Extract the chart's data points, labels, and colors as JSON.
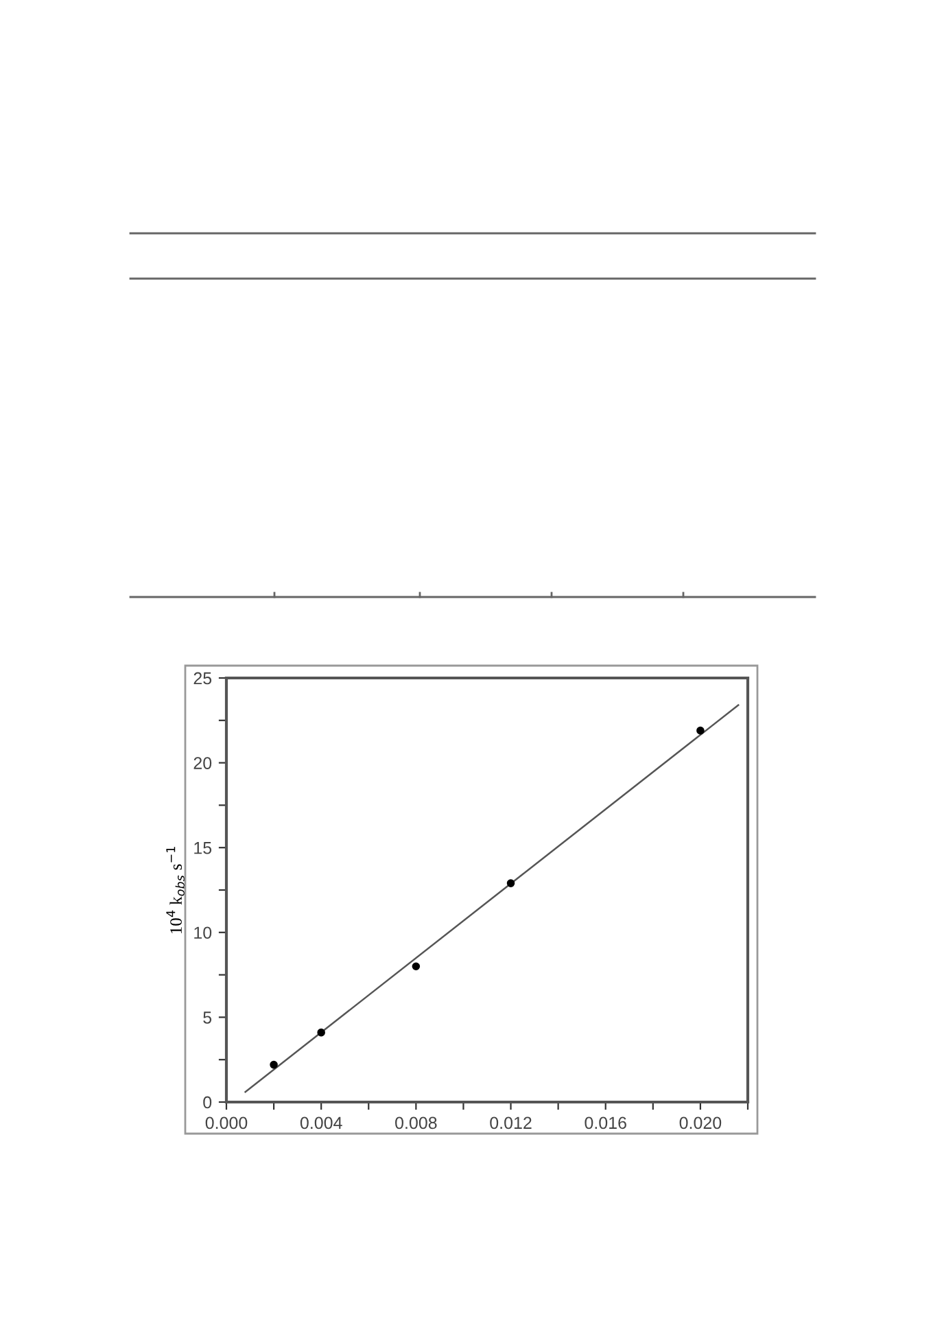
{
  "chart_data": {
    "type": "scatter",
    "ylabel": "10$^{4}$ k$_{obs}$ s$^{−1}$",
    "series": [
      {
        "color": "#000000",
        "x": [
          0.002,
          0.004,
          0.008,
          0.012,
          0.02
        ],
        "values": [
          2.2,
          4.1,
          8.0,
          12.9,
          21.9
        ]
      },
      {
        "type": "line",
        "marker": "none",
        "color": "#555555",
        "x": [
          0.0008,
          0.0216
        ],
        "values": [
          0.6,
          23.4
        ]
      }
    ],
    "xlim": [
      0,
      0.022
    ],
    "ylim": [
      0,
      25
    ],
    "xticks": [
      {
        "value": 0,
        "label": "0.000"
      },
      {
        "value": 0.002,
        "label": null
      },
      {
        "value": 0.004,
        "label": "0.004"
      },
      {
        "value": 0.006,
        "label": null
      },
      {
        "value": 0.008,
        "label": "0.008"
      },
      {
        "value": 0.01,
        "label": null
      },
      {
        "value": 0.012,
        "label": "0.012"
      },
      {
        "value": 0.014,
        "label": null
      },
      {
        "value": 0.016,
        "label": "0.016"
      },
      {
        "value": 0.018,
        "label": null
      },
      {
        "value": 0.02,
        "label": "0.020"
      },
      {
        "value": 0.022,
        "label": null
      }
    ],
    "yticks": [
      0,
      {
        "value": 2.5,
        "label": null
      },
      5,
      {
        "value": 7.5,
        "label": null
      },
      10,
      {
        "value": 12.5,
        "label": null
      },
      15,
      {
        "value": 17.5,
        "label": null
      },
      20,
      {
        "value": 22.5,
        "label": null
      },
      25
    ],
    "grid": false,
    "legend": false,
    "marker": "circle"
  }
}
